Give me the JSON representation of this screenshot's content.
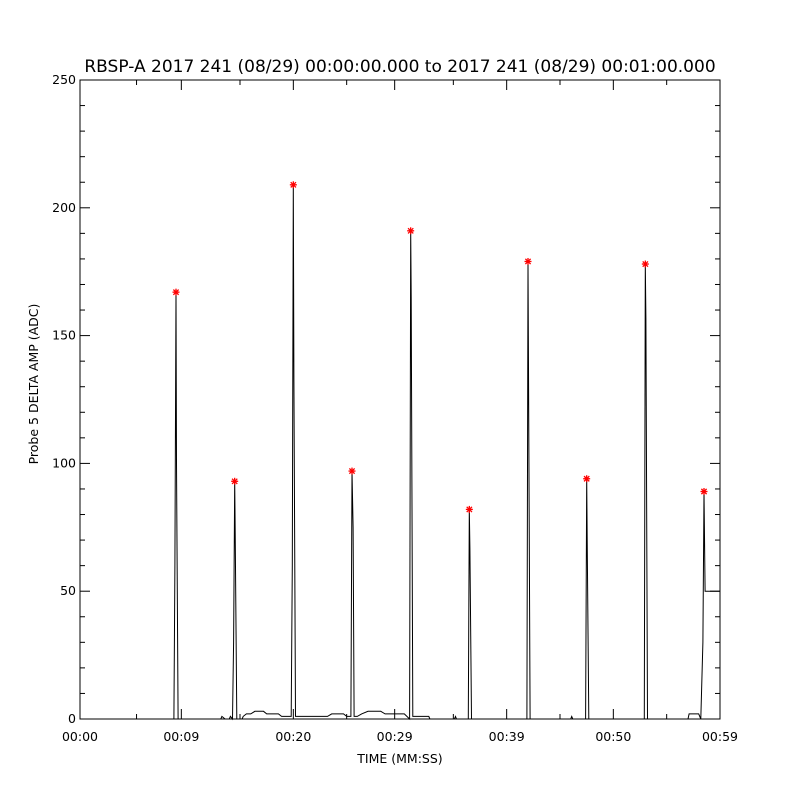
{
  "chart_data": {
    "type": "line",
    "title": "RBSP-A 2017 241 (08/29) 00:00:00.000 to 2017 241 (08/29) 00:01:00.000",
    "xlabel": "TIME (MM:SS)",
    "ylabel": "Probe 5 DELTA AMP (ADC)",
    "xlim": [
      0,
      60
    ],
    "ylim": [
      0,
      250
    ],
    "grid": false,
    "x_ticks": [
      {
        "value": 0,
        "label": "00:00"
      },
      {
        "value": 9.5,
        "label": "00:09"
      },
      {
        "value": 20,
        "label": "00:20"
      },
      {
        "value": 29.5,
        "label": "00:29"
      },
      {
        "value": 40,
        "label": "00:39"
      },
      {
        "value": 50,
        "label": "00:50"
      },
      {
        "value": 60,
        "label": "00:59"
      }
    ],
    "y_ticks": [
      0,
      50,
      100,
      150,
      200,
      250
    ],
    "y_minor_step": 10,
    "x_minor_ticks": [
      5.3,
      15,
      25,
      35,
      45,
      55
    ],
    "colors": {
      "line": "#000000",
      "peak_marker": "#ff0000"
    },
    "peaks": [
      {
        "x": 9.0,
        "y": 167
      },
      {
        "x": 14.5,
        "y": 93
      },
      {
        "x": 20.0,
        "y": 209
      },
      {
        "x": 25.5,
        "y": 97
      },
      {
        "x": 31.0,
        "y": 191
      },
      {
        "x": 36.5,
        "y": 82
      },
      {
        "x": 42.0,
        "y": 179
      },
      {
        "x": 47.5,
        "y": 94
      },
      {
        "x": 53.0,
        "y": 178
      },
      {
        "x": 58.5,
        "y": 89
      }
    ],
    "series": [
      {
        "values": [
          [
            0,
            0
          ],
          [
            8.8,
            0
          ],
          [
            8.9,
            60
          ],
          [
            9.0,
            167
          ],
          [
            9.05,
            100
          ],
          [
            9.2,
            0
          ],
          [
            13.2,
            0
          ],
          [
            13.3,
            1
          ],
          [
            13.6,
            0
          ],
          [
            14.0,
            0
          ],
          [
            14.1,
            1
          ],
          [
            14.3,
            0
          ],
          [
            14.4,
            30
          ],
          [
            14.5,
            93
          ],
          [
            14.55,
            73
          ],
          [
            14.7,
            0
          ],
          [
            15.2,
            0
          ],
          [
            15.3,
            1
          ],
          [
            15.6,
            2
          ],
          [
            16.0,
            2
          ],
          [
            16.4,
            3
          ],
          [
            17.2,
            3
          ],
          [
            17.5,
            2
          ],
          [
            18.6,
            2
          ],
          [
            18.9,
            1
          ],
          [
            19.8,
            1
          ],
          [
            19.9,
            60
          ],
          [
            20.0,
            209
          ],
          [
            20.05,
            133
          ],
          [
            20.2,
            1
          ],
          [
            21.0,
            1
          ],
          [
            21.6,
            1
          ],
          [
            23.2,
            1
          ],
          [
            23.6,
            2
          ],
          [
            24.7,
            2
          ],
          [
            25.0,
            1
          ],
          [
            25.4,
            1
          ],
          [
            25.5,
            97
          ],
          [
            25.6,
            75
          ],
          [
            25.7,
            1
          ],
          [
            26.0,
            1
          ],
          [
            26.4,
            2
          ],
          [
            27.0,
            3
          ],
          [
            28.2,
            3
          ],
          [
            28.6,
            2
          ],
          [
            30.4,
            2
          ],
          [
            30.9,
            0
          ],
          [
            31.0,
            191
          ],
          [
            31.05,
            165
          ],
          [
            31.2,
            1
          ],
          [
            32.7,
            1
          ],
          [
            32.8,
            0
          ],
          [
            35.1,
            0
          ],
          [
            35.2,
            1
          ],
          [
            35.3,
            0
          ],
          [
            36.4,
            0
          ],
          [
            36.5,
            82
          ],
          [
            36.55,
            67
          ],
          [
            36.7,
            0
          ],
          [
            41.9,
            0
          ],
          [
            42.0,
            179
          ],
          [
            42.05,
            137
          ],
          [
            42.2,
            0
          ],
          [
            46.0,
            0
          ],
          [
            46.1,
            1
          ],
          [
            46.2,
            0
          ],
          [
            47.4,
            0
          ],
          [
            47.5,
            94
          ],
          [
            47.55,
            70
          ],
          [
            47.7,
            0
          ],
          [
            52.9,
            0
          ],
          [
            53.0,
            178
          ],
          [
            53.05,
            157
          ],
          [
            53.2,
            0
          ],
          [
            57.0,
            0
          ],
          [
            57.1,
            2
          ],
          [
            58.0,
            2
          ],
          [
            58.2,
            0
          ],
          [
            58.4,
            30
          ],
          [
            58.5,
            89
          ],
          [
            58.6,
            50
          ],
          [
            60.0,
            50
          ]
        ]
      }
    ]
  }
}
